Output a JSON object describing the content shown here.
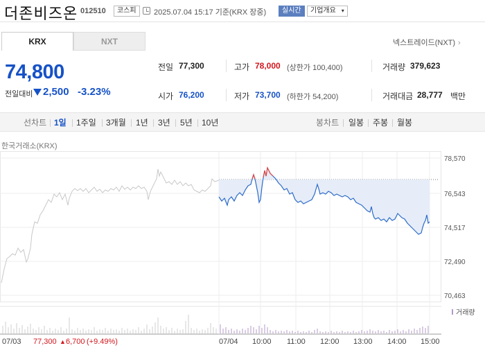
{
  "header": {
    "name": "더존비즈온",
    "code": "012510",
    "market": "코스피",
    "timestamp": "2025.07.04 15:17 기준(KRX 장중)",
    "live_label": "실시간",
    "company_label": "기업개요",
    "company_chevron": "▾"
  },
  "tabs": [
    {
      "label": "KRX",
      "active": true
    },
    {
      "label": "NXT",
      "active": false
    }
  ],
  "nxt_link": "넥스트레이드(NXT)",
  "quote": {
    "price": "74,800",
    "change_label": "전일대비",
    "change_amount": "2,500",
    "change_percent": "-3.23%",
    "direction": "down",
    "down_color": "#1652c7",
    "up_color": "#d4161d"
  },
  "info": {
    "prev_close": {
      "label": "전일",
      "value": "77,300"
    },
    "high": {
      "label": "고가",
      "value": "78,000",
      "sub": "(상한가 100,400)"
    },
    "volume": {
      "label": "거래량",
      "value": "379,623"
    },
    "open": {
      "label": "시가",
      "value": "76,200"
    },
    "low": {
      "label": "저가",
      "value": "73,700",
      "sub": "(하한가 54,200)"
    },
    "amount": {
      "label": "거래대금",
      "value": "28,777",
      "unit": "백만"
    }
  },
  "toolbar": {
    "line_label": "선차트",
    "periods": [
      "1일",
      "1주일",
      "3개월",
      "1년",
      "3년",
      "5년",
      "10년"
    ],
    "active_period": "1일",
    "candle_label": "봉차트",
    "candle_periods": [
      "일봉",
      "주봉",
      "월봉"
    ]
  },
  "chart": {
    "exchange_label": "한국거래소(KRX)",
    "y_ticks": [
      "78,570",
      "76,543",
      "74,517",
      "72,490",
      "70,463"
    ],
    "x_labels": [
      "07/03",
      "07/04",
      "10:00",
      "11:00",
      "12:00",
      "13:00",
      "14:00",
      "15:00"
    ],
    "volume_legend": "거래량",
    "prev_day_summary": {
      "close": "77,300",
      "change": "6,700",
      "pct": "(+9.49%)"
    },
    "up_arrow": "▲",
    "colors": {
      "today_line": "#2c6bc8",
      "fill": "#e3ebf8",
      "prev_line": "#c8c8c8",
      "peak": "#e8453c",
      "volume_today": "#b59ac9",
      "volume_prev": "#cfcfcf"
    }
  },
  "chart_data": {
    "type": "line",
    "ylim": [
      70463,
      78570
    ],
    "y_ticks": [
      78570,
      76543,
      74517,
      72490,
      70463
    ],
    "prev_close": 77300,
    "series": [
      {
        "values": [
          73000,
          73500,
          74800,
          75300,
          76100,
          76500,
          76800,
          77000,
          77300
        ]
      },
      {
        "x": [
          "09:00",
          "09:20",
          "09:40",
          "10:00",
          "10:20",
          "10:40",
          "11:00",
          "11:20",
          "11:40",
          "12:00",
          "12:20",
          "12:40",
          "13:00",
          "13:20",
          "13:40",
          "14:00",
          "14:20",
          "14:40",
          "15:00",
          "15:10"
        ],
        "values": [
          76200,
          76500,
          76800,
          77800,
          76900,
          76600,
          76200,
          76400,
          76700,
          76400,
          76300,
          76200,
          75800,
          75700,
          75200,
          74900,
          75100,
          74700,
          74300,
          74800
        ]
      }
    ]
  }
}
